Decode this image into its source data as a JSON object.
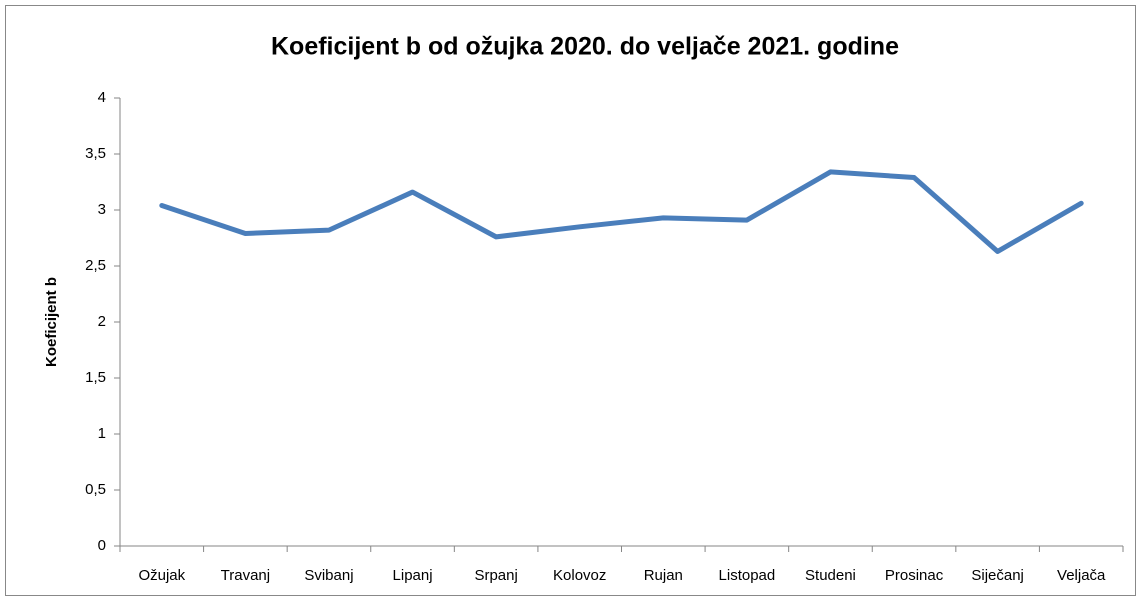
{
  "chart_data": {
    "type": "line",
    "title": "Koeficijent b od ožujka 2020. do veljače 2021. godine",
    "y_label": "Koeficijent b",
    "categories": [
      "Ožujak",
      "Travanj",
      "Svibanj",
      "Lipanj",
      "Srpanj",
      "Kolovoz",
      "Rujan",
      "Listopad",
      "Studeni",
      "Prosinac",
      "Siječanj",
      "Veljača"
    ],
    "series": [
      {
        "name": "Koeficijent b",
        "color": "#4a7ebb",
        "values": [
          3.04,
          2.79,
          2.82,
          3.16,
          2.76,
          2.85,
          2.93,
          2.91,
          3.34,
          3.29,
          2.63,
          3.06
        ]
      }
    ],
    "ylim": [
      0,
      4
    ],
    "yticks": [
      0,
      {
        "value": 0.5,
        "label": "0,5"
      },
      1,
      {
        "value": 1.5,
        "label": "1,5"
      },
      2,
      {
        "value": 2.5,
        "label": "2,5"
      },
      3,
      {
        "value": 3.5,
        "label": "3,5"
      },
      4
    ],
    "grid": false,
    "legend": false
  }
}
